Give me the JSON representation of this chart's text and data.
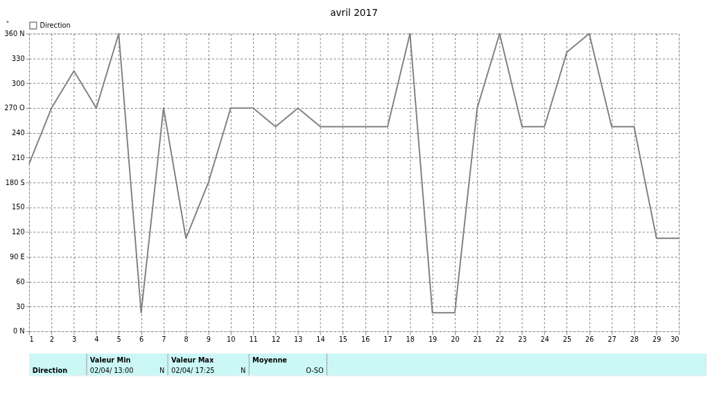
{
  "chart_data": {
    "type": "line",
    "title": "avril 2017",
    "ylabel": "°",
    "x": [
      1,
      2,
      3,
      4,
      5,
      6,
      7,
      8,
      9,
      10,
      11,
      12,
      13,
      14,
      15,
      16,
      17,
      18,
      19,
      20,
      21,
      22,
      23,
      24,
      25,
      26,
      27,
      28,
      29,
      30
    ],
    "series": [
      {
        "name": "Direction",
        "color": "#808080",
        "values": [
          202.5,
          270,
          315,
          270,
          360,
          22.5,
          270,
          112.5,
          180,
          270,
          270,
          247.5,
          270,
          247.5,
          247.5,
          247.5,
          247.5,
          360,
          22.5,
          22.5,
          270,
          360,
          247.5,
          247.5,
          337.5,
          360,
          247.5,
          247.5,
          112.5,
          112.5
        ]
      }
    ],
    "xlim": [
      1,
      30
    ],
    "xticks": [
      1,
      2,
      3,
      4,
      5,
      6,
      7,
      8,
      9,
      10,
      11,
      12,
      13,
      14,
      15,
      16,
      17,
      18,
      19,
      20,
      21,
      22,
      23,
      24,
      25,
      26,
      27,
      28,
      29,
      30
    ],
    "ylim": [
      0,
      360
    ],
    "yticks": [
      {
        "value": 0,
        "label": "0 N"
      },
      30,
      60,
      {
        "value": 90,
        "label": "90  E"
      },
      120,
      150,
      {
        "value": 180,
        "label": "180 S"
      },
      210,
      240,
      {
        "value": 270,
        "label": "270 O"
      },
      300,
      330,
      {
        "value": 360,
        "label": "360 N"
      }
    ],
    "grid": true,
    "legend": "top left",
    "marker": "none",
    "line_style": "solid",
    "annotations": [
      "Direction",
      "Valeur Min",
      "02/04/  13:00",
      "N",
      "Valeur Max",
      "02/04/  17:25",
      "N",
      "Moyenne",
      "O-SO"
    ]
  }
}
